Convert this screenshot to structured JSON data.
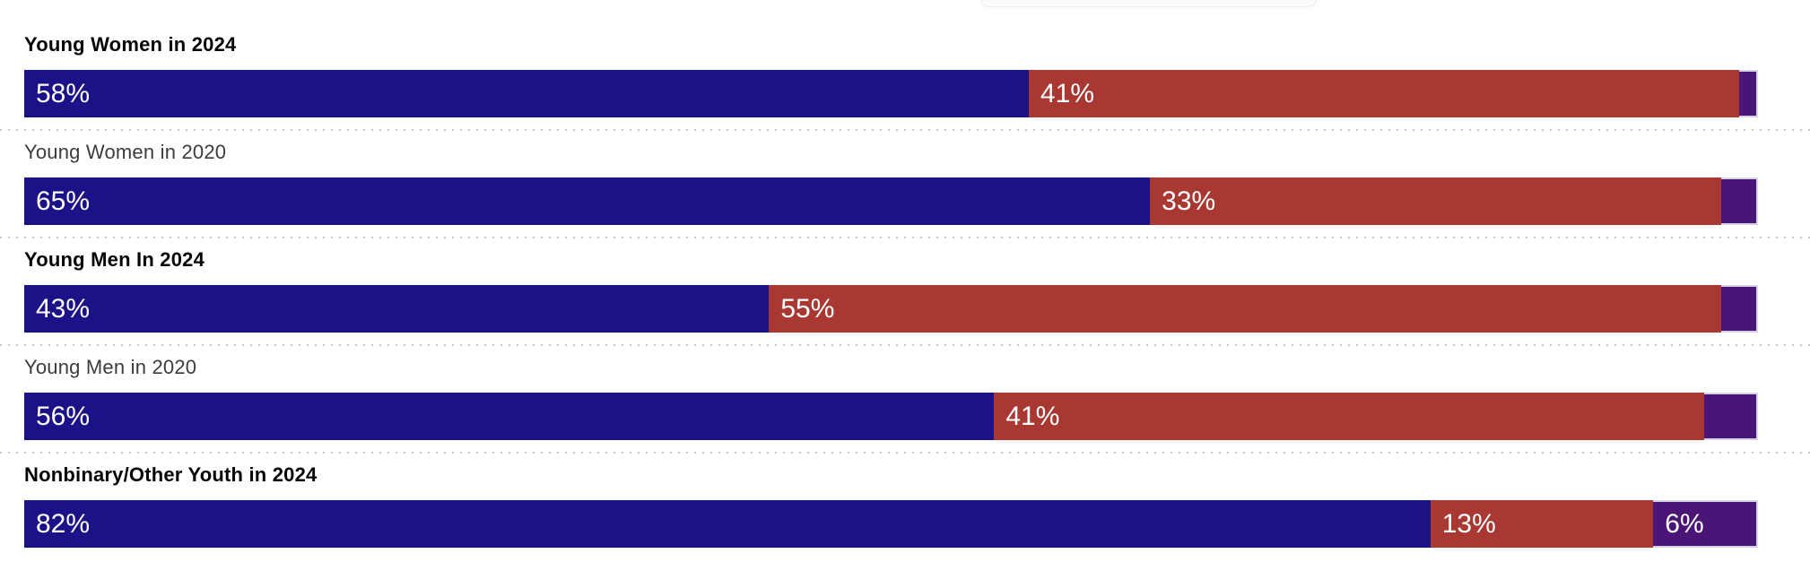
{
  "colors": {
    "background": "#ffffff",
    "segment_blue": "#1b1288",
    "segment_red": "#a93833",
    "segment_purple": "#4a1577",
    "purple_segment_border": "#d7d2e3",
    "divider_dots": "#c7c7c7",
    "category_label_bold": "#050505",
    "category_label_regular": "#3c3c3c",
    "bar_value_text": "#ffffff"
  },
  "chart_data": {
    "type": "bar",
    "orientation": "horizontal",
    "stacked": true,
    "unit": "%",
    "axes": "none",
    "legend": "none",
    "grid": false,
    "categories": [
      "Young Women in 2024",
      "Young Women in 2020",
      "Young Men In 2024",
      "Young Men in 2020",
      "Nonbinary/Other Youth in 2024"
    ],
    "category_emphasis": [
      true,
      false,
      true,
      false,
      true
    ],
    "series": [
      {
        "name": "blue",
        "color": "#1b1288",
        "values": [
          58,
          65,
          43,
          56,
          82
        ]
      },
      {
        "name": "red",
        "color": "#a93833",
        "values": [
          41,
          33,
          55,
          41,
          13
        ]
      },
      {
        "name": "purple",
        "color": "#4a1577",
        "values": [
          1,
          2,
          2,
          3,
          6
        ]
      }
    ],
    "value_labels_shown": {
      "blue": [
        "58%",
        "65%",
        "43%",
        "56%",
        "82%"
      ],
      "red": [
        "41%",
        "33%",
        "55%",
        "41%",
        "13%"
      ],
      "purple": [
        "",
        "",
        "",
        "",
        "6%"
      ]
    }
  }
}
